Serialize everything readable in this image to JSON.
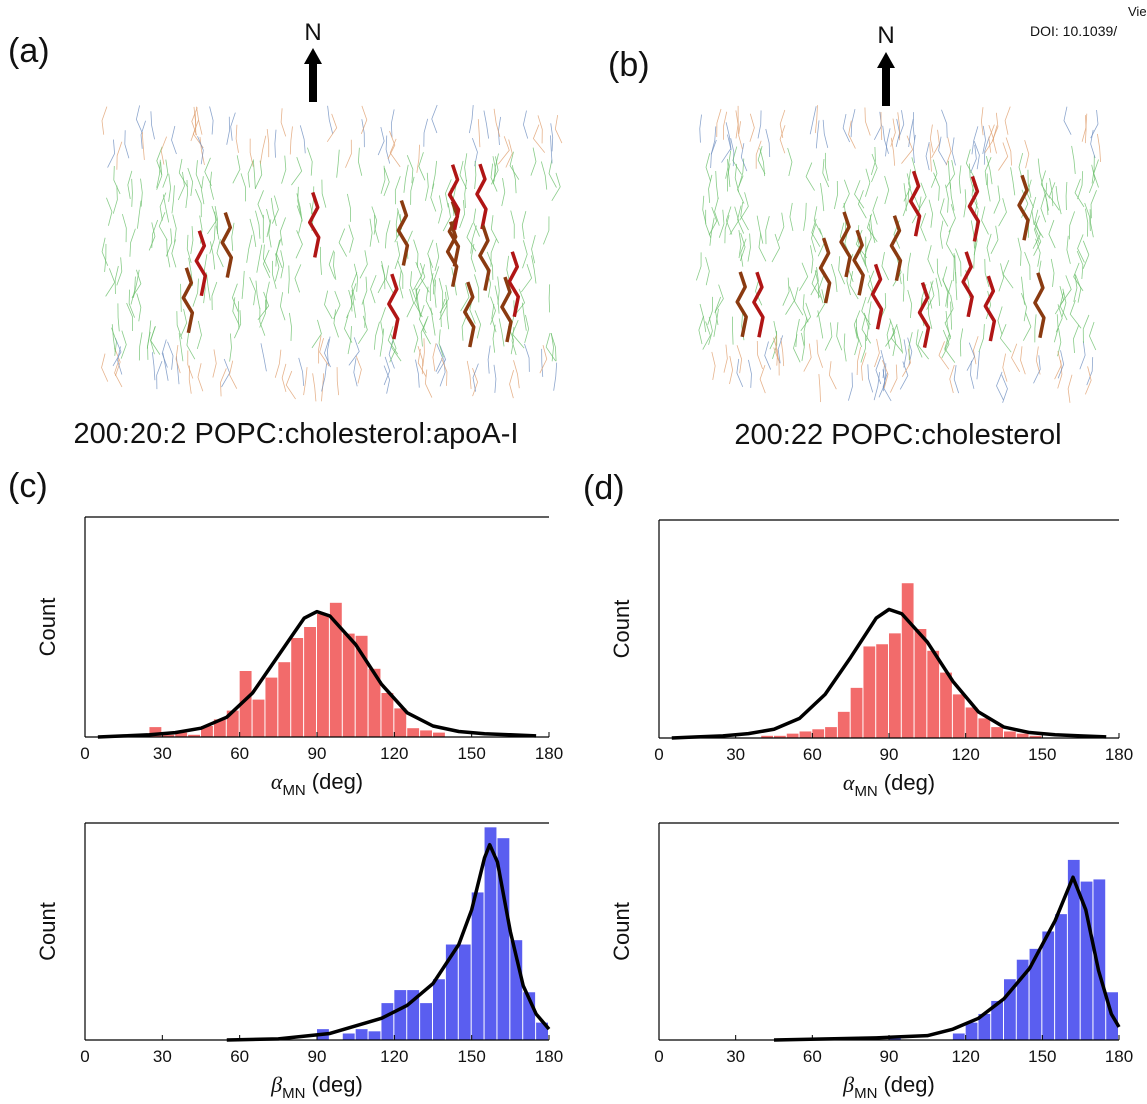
{
  "header": {
    "line1": "Vie",
    "line2": "DOI: 10.1039/"
  },
  "panels": {
    "a": {
      "label": "(a)",
      "arrow": "N",
      "caption": "200:20:2 POPC:cholesterol:apoA-I"
    },
    "b": {
      "label": "(b)",
      "arrow": "N",
      "caption": "200:22 POPC:cholesterol"
    },
    "c": {
      "label": "(c)"
    },
    "d": {
      "label": "(d)"
    }
  },
  "chart_data": [
    {
      "type": "histogram",
      "ylabel": "Count",
      "xlabel": {
        "symbol": "α",
        "sub": "MN",
        "unit": "(deg)"
      },
      "bins": [
        25,
        30,
        35,
        40,
        45,
        50,
        55,
        60,
        65,
        70,
        75,
        80,
        85,
        90,
        95,
        100,
        105,
        110,
        115,
        120,
        125,
        130,
        135,
        140
      ],
      "counts": [
        4.5,
        1,
        2,
        1,
        5,
        8,
        12,
        30,
        17,
        27,
        34,
        45,
        50,
        56,
        61,
        47,
        46,
        31,
        20,
        13,
        4,
        3,
        2
      ],
      "color": "#f26b6b",
      "xlim": [
        0,
        180
      ],
      "xticks": [
        0,
        30,
        60,
        90,
        120,
        150,
        180
      ],
      "ylim": [
        0,
        100
      ],
      "fit": {
        "x": [
          5,
          15,
          25,
          35,
          45,
          55,
          65,
          75,
          85,
          90,
          95,
          105,
          115,
          125,
          135,
          145,
          155,
          165,
          175
        ],
        "values": [
          0,
          0.5,
          1,
          2,
          4,
          9,
          20,
          37,
          54,
          57,
          55,
          42,
          24,
          11,
          5,
          2.5,
          1.5,
          1,
          0.5
        ],
        "color": "#000000"
      }
    },
    {
      "type": "histogram",
      "ylabel": "Count",
      "xlabel": {
        "symbol": "α",
        "sub": "MN",
        "unit": "(deg)"
      },
      "bins": [
        40,
        45,
        50,
        55,
        60,
        65,
        70,
        75,
        80,
        85,
        90,
        95,
        100,
        105,
        110,
        115,
        120,
        125,
        130,
        135,
        140,
        145,
        150
      ],
      "counts": [
        1,
        1,
        2,
        3,
        4,
        5,
        12,
        23,
        42,
        43,
        48,
        71,
        50,
        40,
        30,
        20,
        14,
        9,
        5,
        3,
        2,
        1
      ],
      "color": "#f26b6b",
      "xlim": [
        0,
        180
      ],
      "xticks": [
        0,
        30,
        60,
        90,
        120,
        150,
        180
      ],
      "ylim": [
        0,
        100
      ],
      "fit": {
        "x": [
          5,
          15,
          25,
          35,
          45,
          55,
          65,
          75,
          85,
          90,
          95,
          105,
          115,
          125,
          135,
          145,
          155,
          165,
          175
        ],
        "values": [
          0,
          0.5,
          1,
          2,
          4,
          9,
          20,
          37,
          55,
          59,
          57,
          44,
          26,
          12,
          5,
          2.5,
          1.5,
          1,
          0.5
        ],
        "color": "#000000"
      }
    },
    {
      "type": "histogram",
      "ylabel": "Count",
      "xlabel": {
        "symbol": "β",
        "sub": "MN",
        "unit": "(deg)"
      },
      "bins": [
        90,
        95,
        100,
        105,
        110,
        115,
        120,
        125,
        130,
        135,
        140,
        145,
        150,
        155,
        160,
        165,
        170,
        175,
        180
      ],
      "counts": [
        5,
        0,
        3,
        5,
        4,
        17,
        23,
        23,
        17,
        28,
        44,
        44,
        68,
        98,
        93,
        46,
        22,
        8
      ],
      "color": "#5a5ef0",
      "xlim": [
        0,
        180
      ],
      "xticks": [
        0,
        30,
        60,
        90,
        120,
        150,
        180
      ],
      "ylim": [
        0,
        100
      ],
      "fit": {
        "x": [
          55,
          75,
          95,
          115,
          125,
          135,
          145,
          150,
          155,
          157,
          160,
          165,
          170,
          175,
          180
        ],
        "values": [
          0,
          0.5,
          3,
          10,
          16,
          26,
          44,
          60,
          84,
          90,
          82,
          50,
          25,
          12,
          5
        ],
        "color": "#000000"
      }
    },
    {
      "type": "histogram",
      "ylabel": "Count",
      "xlabel": {
        "symbol": "β",
        "sub": "MN",
        "unit": "(deg)"
      },
      "bins": [
        90,
        95,
        100,
        105,
        110,
        115,
        120,
        125,
        130,
        135,
        140,
        145,
        150,
        155,
        160,
        165,
        170,
        175,
        180
      ],
      "counts": [
        2,
        0,
        0,
        0,
        0,
        3,
        8,
        12,
        18,
        28,
        37,
        42,
        50,
        58,
        83,
        73,
        74,
        22
      ],
      "color": "#5a5ef0",
      "xlim": [
        0,
        180
      ],
      "xticks": [
        0,
        30,
        60,
        90,
        120,
        150,
        180
      ],
      "ylim": [
        0,
        100
      ],
      "fit": {
        "x": [
          45,
          85,
          105,
          115,
          125,
          135,
          145,
          155,
          162,
          167,
          172,
          177,
          180
        ],
        "values": [
          0,
          1,
          2,
          5,
          10,
          19,
          33,
          55,
          75,
          60,
          32,
          12,
          6
        ],
        "color": "#000000"
      }
    }
  ]
}
